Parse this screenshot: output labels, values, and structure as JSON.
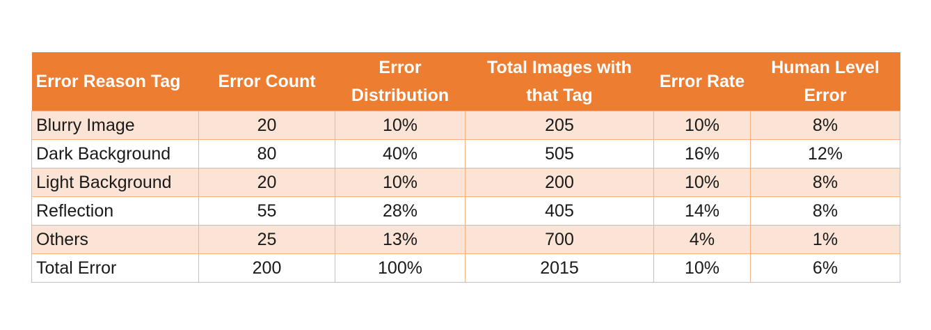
{
  "table": {
    "headers": [
      "Error Reason Tag",
      "Error Count",
      "Error Distribution",
      "Total Images with that Tag",
      "Error Rate",
      "Human Level Error"
    ],
    "rows": [
      [
        "Blurry Image",
        "20",
        "10%",
        "205",
        "10%",
        "8%"
      ],
      [
        "Dark Background",
        "80",
        "40%",
        "505",
        "16%",
        "12%"
      ],
      [
        "Light Background",
        "20",
        "10%",
        "200",
        "10%",
        "8%"
      ],
      [
        "Reflection",
        "55",
        "28%",
        "405",
        "14%",
        "8%"
      ],
      [
        "Others",
        "25",
        "13%",
        "700",
        "4%",
        "1%"
      ],
      [
        "Total Error",
        "200",
        "100%",
        "2015",
        "10%",
        "6%"
      ]
    ]
  },
  "colors": {
    "header_bg": "#ed7d31",
    "header_text": "#ffffff",
    "band_row_bg": "#fbe4d5",
    "plain_row_bg": "#ffffff",
    "border": "#f4b183"
  }
}
